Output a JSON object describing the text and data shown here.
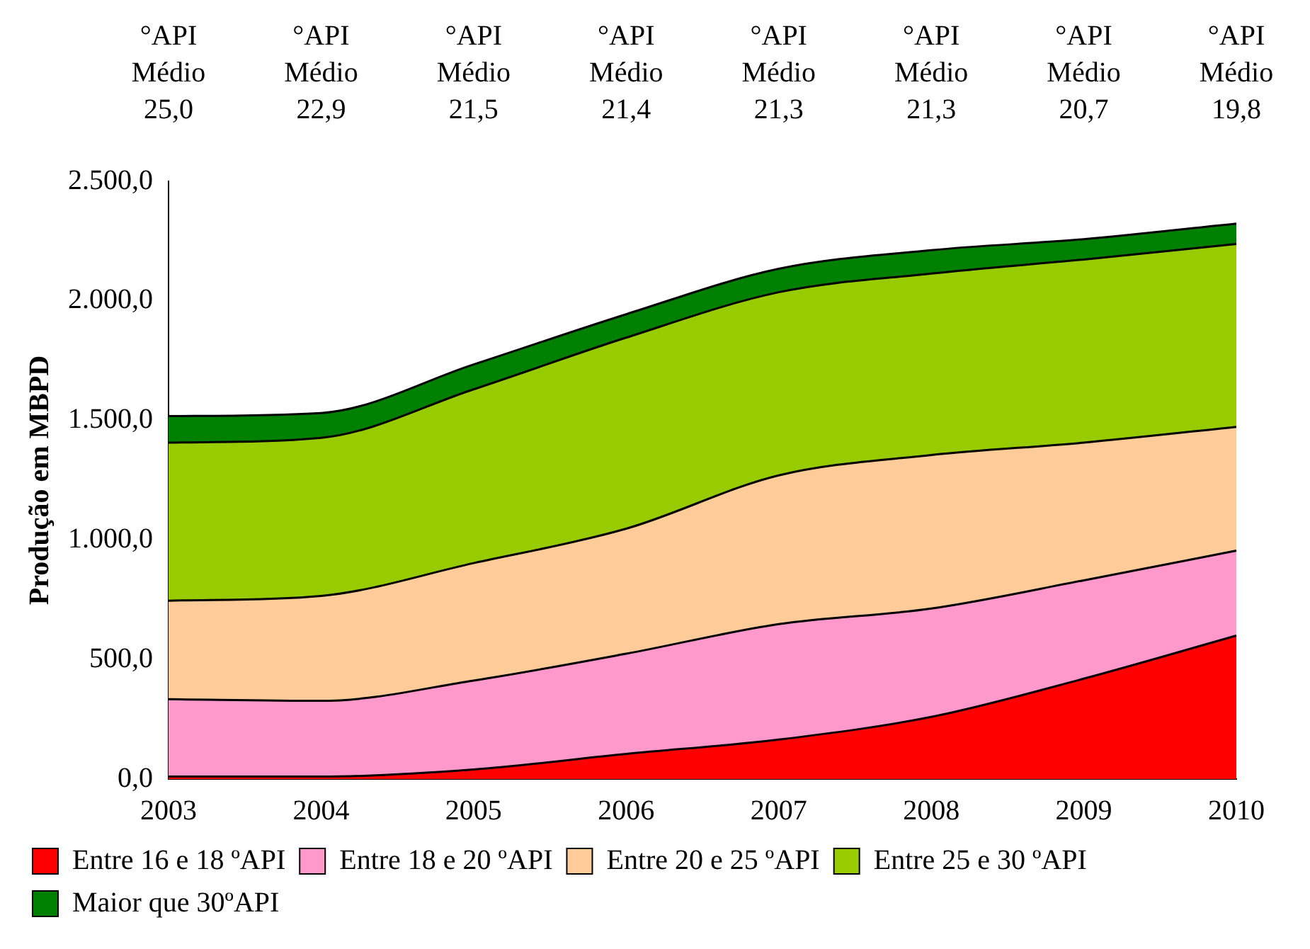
{
  "chart_data": {
    "type": "area",
    "stacked": true,
    "ylabel": "Produção em MBPD",
    "categories": [
      "2003",
      "2004",
      "2005",
      "2006",
      "2007",
      "2008",
      "2009",
      "2010"
    ],
    "series": [
      {
        "name": "Entre 16 e 18 ºAPI",
        "color": "#ff0000",
        "values": [
          10,
          10,
          40,
          105,
          165,
          260,
          420,
          600
        ]
      },
      {
        "name": "Entre 18 e 20 ºAPI",
        "color": "#ff99cc",
        "values": [
          324,
          317,
          372,
          419,
          483,
          453,
          411,
          355
        ]
      },
      {
        "name": "Entre 20 e 25 ºAPI",
        "color": "#ffcc99",
        "values": [
          412,
          439,
          491,
          523,
          622,
          642,
          576,
          518
        ]
      },
      {
        "name": "Entre 25 e 30 ºAPI",
        "color": "#99cc00",
        "values": [
          661,
          661,
          727,
          799,
          766,
          759,
          766,
          765
        ]
      },
      {
        "name": "Maior que 30ºAPI",
        "color": "#008000",
        "values": [
          111,
          104,
          104,
          98,
          98,
          98,
          85,
          85
        ]
      }
    ],
    "ylim": [
      0,
      2500
    ],
    "yticks": [
      {
        "value": 0,
        "label": "0,0"
      },
      {
        "value": 500,
        "label": "500,0"
      },
      {
        "value": 1000,
        "label": "1.000,0"
      },
      {
        "value": 1500,
        "label": "1.500,0"
      },
      {
        "value": 2000,
        "label": "2.000,0"
      },
      {
        "value": 2500,
        "label": "2.500,0"
      }
    ],
    "annotations": [
      "°API\nMédio\n25,0",
      "°API\nMédio\n22,9",
      "°API\nMédio\n21,5",
      "°API\nMédio\n21,4",
      "°API\nMédio\n21,3",
      "°API\nMédio\n21,3",
      "°API\nMédio\n20,7",
      "°API\nMédio\n19,8"
    ],
    "grid": false,
    "legend": "bottom"
  }
}
